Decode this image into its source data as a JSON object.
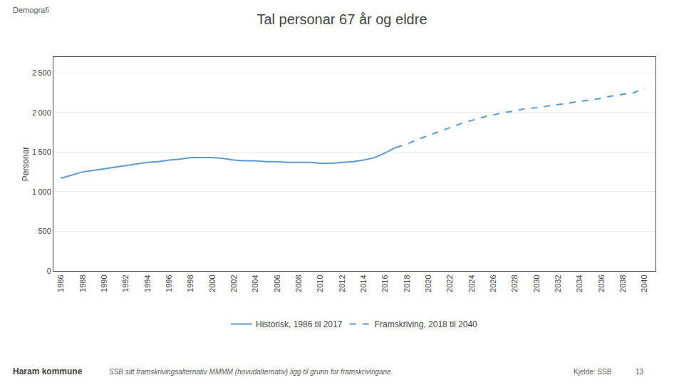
{
  "chart_data": {
    "type": "line",
    "title": "Tal personar 67 år og eldre",
    "ylabel": "Personar",
    "annotations": [
      "Demografi",
      "Haram kommune",
      "SSB sitt framskrivingsalternativ MMMM (hovudalternativ) ligg til grunn for framskrivingane.",
      "Kjelde: SSB",
      "13"
    ],
    "series": [
      {
        "name": "Historisk, 1986 til 2017",
        "color": "#5B9BD5",
        "line_style": "solid",
        "x": [
          1986,
          1987,
          1988,
          1989,
          1990,
          1991,
          1992,
          1993,
          1994,
          1995,
          1996,
          1997,
          1998,
          1999,
          2000,
          2001,
          2002,
          2003,
          2004,
          2005,
          2006,
          2007,
          2008,
          2009,
          2010,
          2011,
          2012,
          2013,
          2014,
          2015,
          2016,
          2017
        ],
        "values": [
          1170,
          1210,
          1250,
          1270,
          1290,
          1310,
          1330,
          1350,
          1370,
          1380,
          1400,
          1410,
          1430,
          1430,
          1430,
          1420,
          1400,
          1390,
          1390,
          1380,
          1380,
          1370,
          1370,
          1370,
          1360,
          1360,
          1370,
          1380,
          1400,
          1430,
          1490,
          1560
        ]
      },
      {
        "name": "Framskriving, 2018 til 2040",
        "color": "#5B9BD5",
        "line_style": "dashed",
        "x": [
          2017,
          2018,
          2019,
          2020,
          2021,
          2022,
          2023,
          2024,
          2025,
          2026,
          2027,
          2028,
          2029,
          2030,
          2031,
          2032,
          2033,
          2034,
          2035,
          2036,
          2037,
          2038,
          2039,
          2040
        ],
        "values": [
          1560,
          1600,
          1660,
          1710,
          1760,
          1810,
          1860,
          1900,
          1940,
          1970,
          2000,
          2020,
          2050,
          2060,
          2080,
          2100,
          2120,
          2140,
          2160,
          2180,
          2210,
          2230,
          2250,
          2310
        ]
      }
    ],
    "xlim": [
      1985.3,
      2041.0
    ],
    "xticks": [
      1986,
      1988,
      1990,
      1992,
      1994,
      1996,
      1998,
      2000,
      2002,
      2004,
      2006,
      2008,
      2010,
      2012,
      2014,
      2016,
      2018,
      2020,
      2022,
      2024,
      2026,
      2028,
      2030,
      2032,
      2034,
      2036,
      2038,
      2040
    ],
    "ylim": [
      0,
      2700
    ],
    "yticks": [
      0,
      500,
      {
        "value": 1000,
        "label": "1 000"
      },
      {
        "value": 1500,
        "label": "1 500"
      },
      {
        "value": 2000,
        "label": "2 000"
      },
      {
        "value": 2500,
        "label": "2 500"
      }
    ],
    "grid": true,
    "legend": "bottom"
  }
}
